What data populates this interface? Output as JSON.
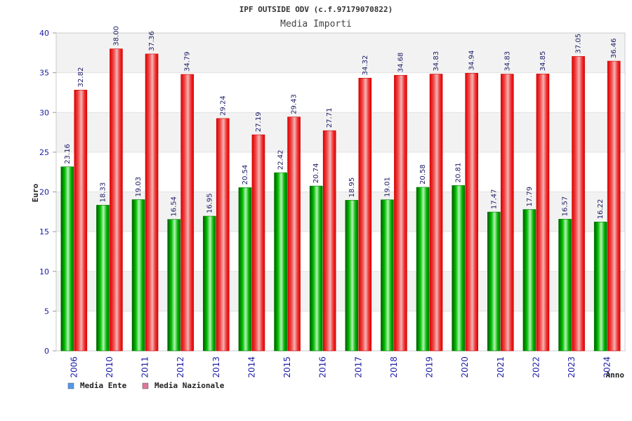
{
  "chart_data": {
    "type": "bar",
    "title": "IPF OUTSIDE ODV (c.f.97179070822)",
    "subtitle": "Media Importi",
    "xlabel": "Anno",
    "ylabel": "Euro",
    "ylim": [
      0,
      40
    ],
    "yticks": [
      0,
      5,
      10,
      15,
      20,
      25,
      30,
      35,
      40
    ],
    "grid": true,
    "legend_position": "bottom-left",
    "categories": [
      "2006",
      "2010",
      "2011",
      "2012",
      "2013",
      "2014",
      "2015",
      "2016",
      "2017",
      "2018",
      "2019",
      "2020",
      "2021",
      "2022",
      "2023",
      "2024"
    ],
    "series": [
      {
        "name": "Media Ente",
        "color": "#00aa00",
        "legend_color": "#5599ee",
        "values": [
          23.16,
          18.33,
          19.03,
          16.54,
          16.95,
          20.54,
          22.42,
          20.74,
          18.95,
          19.01,
          20.58,
          20.81,
          17.47,
          17.79,
          16.57,
          16.22
        ],
        "labels": [
          "23.16",
          "18.33",
          "19.03",
          "16.54",
          "16.95",
          "20.54",
          "22.42",
          "20.74",
          "18.95",
          "19.01",
          "20.58",
          "20.81",
          "17.47",
          "17.79",
          "16.57",
          "16.22"
        ]
      },
      {
        "name": "Media Nazionale",
        "color": "#ee1111",
        "legend_color": "#dd7799",
        "values": [
          32.82,
          38.0,
          37.36,
          34.79,
          29.24,
          27.19,
          29.43,
          27.71,
          34.32,
          34.68,
          34.83,
          34.94,
          34.83,
          34.85,
          37.05,
          36.46
        ],
        "labels": [
          "32.82",
          "38.00",
          "37.36",
          "34.79",
          "29.24",
          "27.19",
          "29.43",
          "27.71",
          "34.32",
          "34.68",
          "34.83",
          "34.94",
          "34.83",
          "34.85",
          "37.05",
          "36.46"
        ]
      }
    ]
  }
}
